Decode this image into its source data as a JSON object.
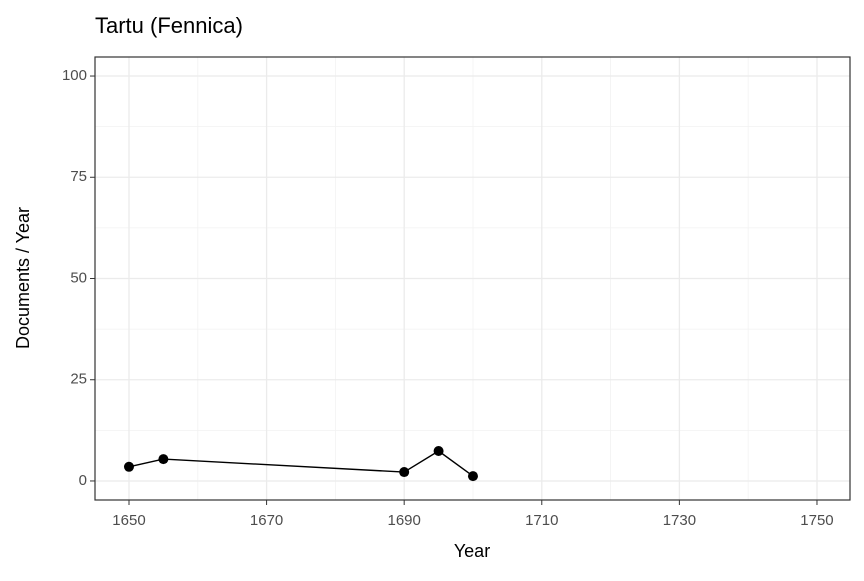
{
  "chart_data": {
    "type": "line",
    "title": "Tartu (Fennica)",
    "x_label": "Year",
    "y_label": "Documents / Year",
    "x": [
      1650,
      1655,
      1690,
      1695,
      1700
    ],
    "series": [
      {
        "color": "#000000",
        "values": [
          3.5,
          5.4,
          2.2,
          7.4,
          1.2
        ]
      }
    ],
    "xlim": [
      1645.06,
      1754.8
    ],
    "ylim": [
      -4.7,
      104.7
    ],
    "xticks": [
      1650,
      1670,
      1690,
      1710,
      1730,
      1750
    ],
    "yticks": [
      0,
      25,
      50,
      75,
      100
    ],
    "xminor": [
      1660,
      1680,
      1700,
      1720,
      1740
    ],
    "yminor": [
      12.5,
      37.5,
      62.5,
      87.5
    ],
    "grid": true,
    "markers": true
  }
}
